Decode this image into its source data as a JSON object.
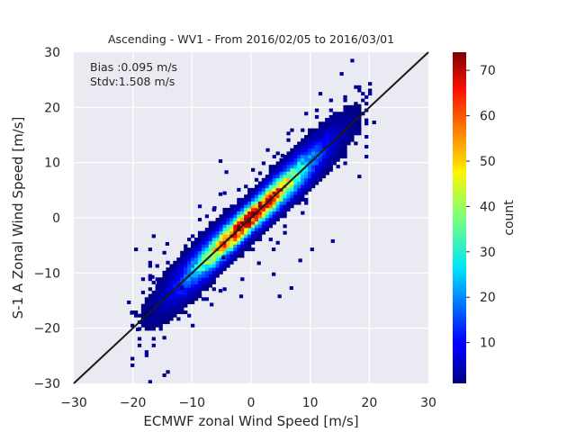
{
  "chart_data": {
    "type": "heatmap",
    "title": "Ascending - WV1 - From 2016/02/05 to 2016/03/01",
    "xlabel": "ECMWF zonal Wind Speed [m/s]",
    "ylabel": "S-1 A Zonal Wind Speed [m/s]",
    "xlim": [
      -30,
      30
    ],
    "ylim": [
      -30,
      30
    ],
    "xticks": [
      -30,
      -20,
      -10,
      0,
      10,
      20,
      30
    ],
    "yticks": [
      -30,
      -20,
      -10,
      0,
      10,
      20,
      30
    ],
    "xtick_labels": [
      "−30",
      "−20",
      "−10",
      "0",
      "10",
      "20",
      "30"
    ],
    "ytick_labels": [
      "−30",
      "−20",
      "−10",
      "0",
      "10",
      "20",
      "30"
    ],
    "grid": true,
    "annotations": [
      "Bias :0.095 m/s",
      "Stdv:1.508 m/s"
    ],
    "reference_line": {
      "x": [
        -30,
        30
      ],
      "y": [
        -30,
        30
      ],
      "color": "#1a1a1a"
    },
    "colorbar": {
      "label": "count",
      "colormap": "jet",
      "range": [
        1,
        74
      ],
      "ticks": [
        10,
        20,
        30,
        40,
        50,
        60,
        70
      ],
      "tick_labels": [
        "10",
        "20",
        "30",
        "40",
        "50",
        "60",
        "70"
      ]
    },
    "bin_width": 0.6,
    "density_model": {
      "bias": 0.095,
      "stdv": 1.508,
      "peak_count": 74,
      "x_range": [
        -21,
        20
      ]
    },
    "outliers": [
      [
        -20.5,
        -17.5
      ],
      [
        -19.5,
        -20.5
      ],
      [
        -15.0,
        -22.0
      ],
      [
        -16.5,
        -18.5
      ],
      [
        -16.0,
        -12.0
      ],
      [
        -14.5,
        -5.0
      ],
      [
        -7.0,
        -16.0
      ],
      [
        -9.0,
        -14.5
      ],
      [
        -5.5,
        -13.5
      ],
      [
        -2.0,
        -14.5
      ],
      [
        4.5,
        -14.5
      ],
      [
        6.5,
        -13.0
      ],
      [
        3.5,
        -10.5
      ],
      [
        -5.0,
        -7.5
      ],
      [
        3.5,
        -6.0
      ],
      [
        8.0,
        -8.0
      ],
      [
        13.5,
        -4.5
      ],
      [
        10.0,
        -6.0
      ],
      [
        -5.5,
        10.0
      ],
      [
        -6.5,
        1.5
      ],
      [
        -5.5,
        4.0
      ],
      [
        -4.5,
        8.0
      ],
      [
        2.5,
        12.0
      ],
      [
        3.0,
        9.0
      ],
      [
        5.0,
        11.0
      ],
      [
        12.5,
        17.5
      ],
      [
        16.5,
        16.0
      ],
      [
        18.0,
        20.0
      ],
      [
        20.5,
        17.0
      ],
      [
        15.5,
        13.5
      ],
      [
        11.5,
        14.5
      ],
      [
        -12.0,
        -13.0
      ],
      [
        -17.0,
        -11.0
      ],
      [
        1.0,
        -8.5
      ],
      [
        6.0,
        2.0
      ],
      [
        9.0,
        3.0
      ]
    ]
  }
}
